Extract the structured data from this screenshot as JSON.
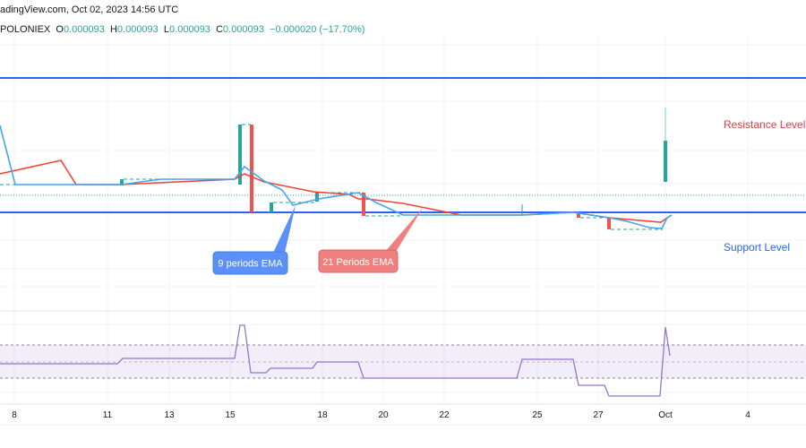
{
  "header": {
    "source_line": "adingView.com, Oct 02, 2023 14:56 UTC",
    "symbol": "POLONIEX",
    "open_label": "O",
    "open": "0.000093",
    "high_label": "H",
    "high": "0.000093",
    "low_label": "L",
    "low": "0.000093",
    "close_label": "C",
    "close": "0.000093",
    "change": "−0.000020 (−17.70%)"
  },
  "annotations": {
    "resistance": "Resistance Level",
    "support": "Support Level",
    "ema9": "9 periods EMA",
    "ema21": "21 Periods EMA"
  },
  "colors": {
    "up": "#26a69a",
    "down": "#ef5350",
    "ema9": "#42a5f5",
    "ema21": "#f44336",
    "level_line": "#2962ff",
    "rsi": "#9575cd",
    "resistance_text": "#f23645",
    "support_text": "#2962ff"
  },
  "x_axis": {
    "labels": [
      "8",
      "11",
      "13",
      "15",
      "18",
      "20",
      "22",
      "25",
      "27",
      "Oct",
      "4"
    ]
  }
}
